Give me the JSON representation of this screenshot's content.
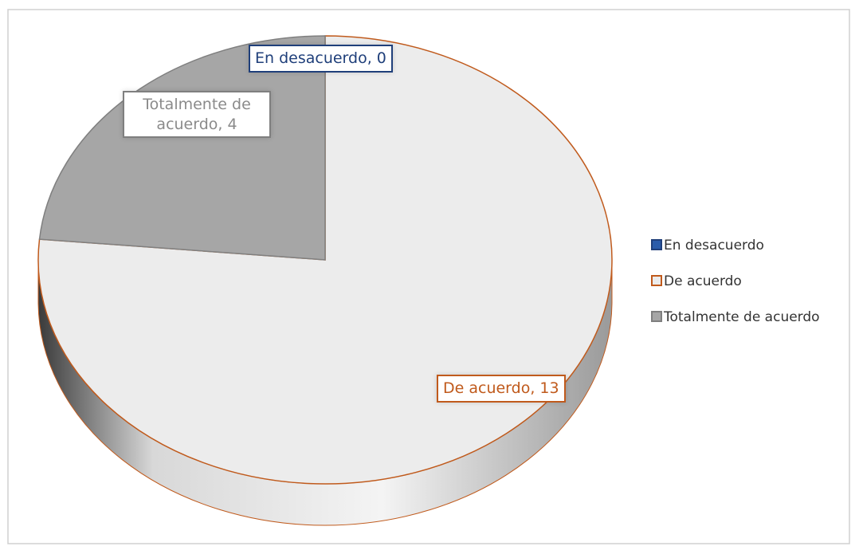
{
  "chart_data": {
    "type": "pie",
    "categories": [
      "En desacuerdo",
      "De acuerdo",
      "Totalmente de acuerdo"
    ],
    "values": [
      0,
      13,
      4
    ],
    "value_labels": [
      "En desacuerdo, 0",
      "De acuerdo, 13",
      "Totalmente de acuerdo, 4"
    ],
    "colors": [
      "#2a5caa",
      "#ececec",
      "#a6a6a6"
    ],
    "edge_colors": [
      "#1f3f7a",
      "#c05a1c",
      "#7f7f7f"
    ],
    "legend": "right"
  }
}
